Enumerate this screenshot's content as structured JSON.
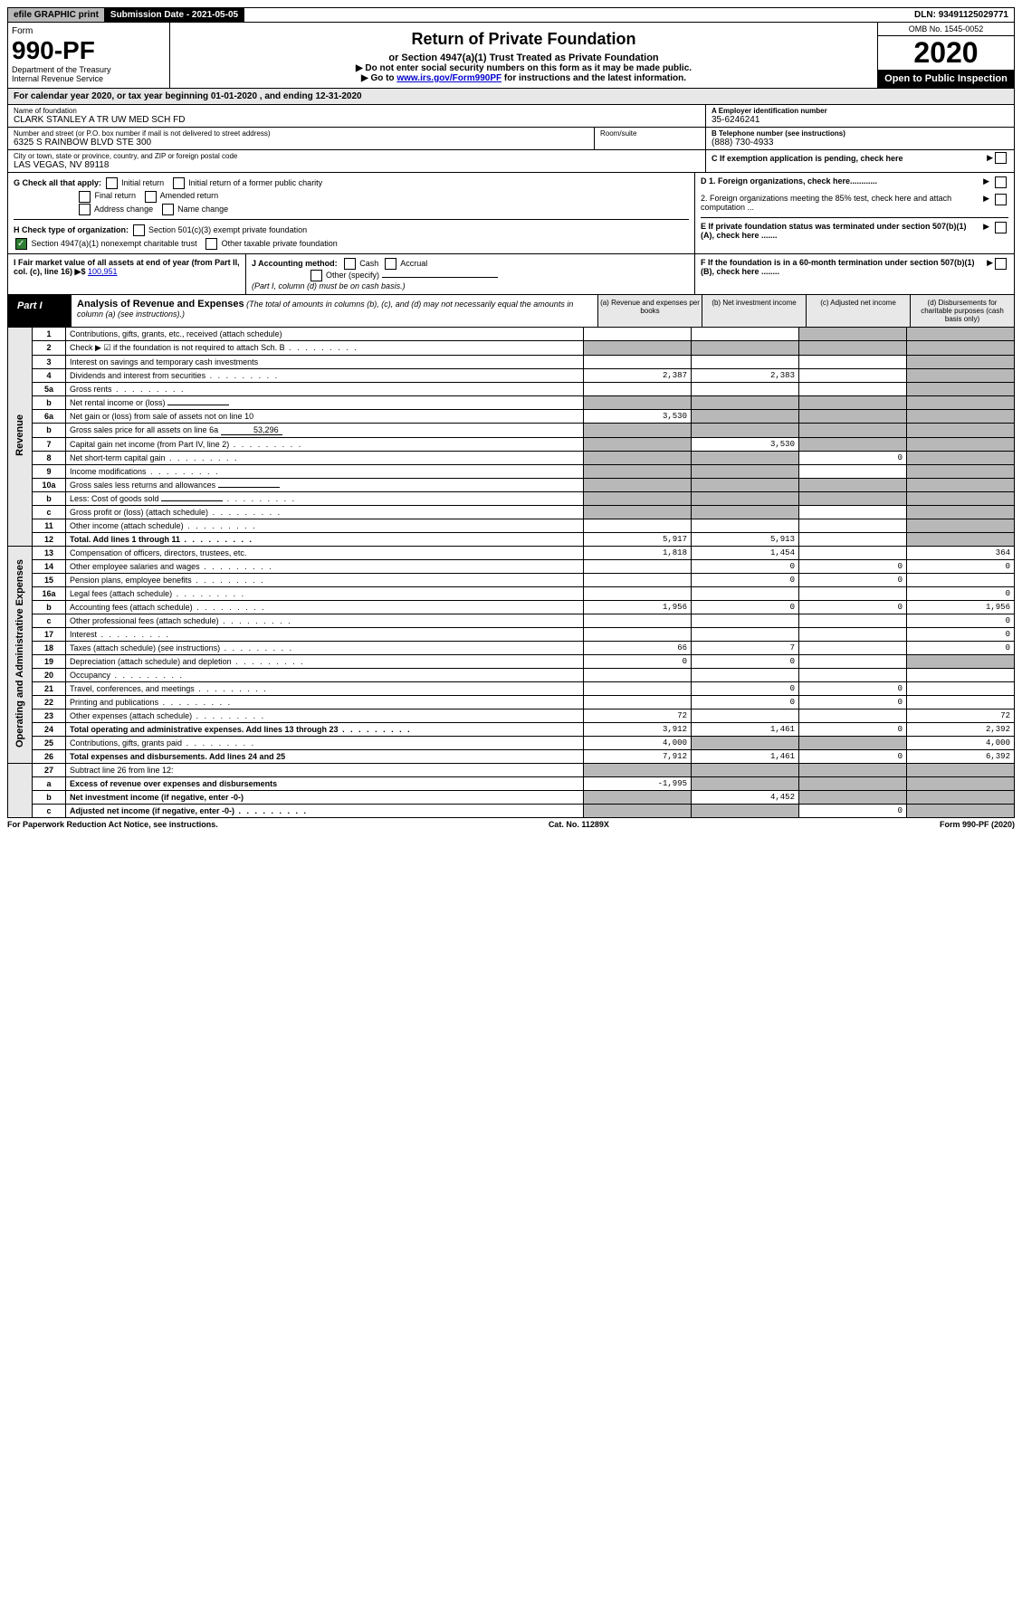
{
  "topbar": {
    "efile": "efile GRAPHIC print",
    "subdate_label": "Submission Date - ",
    "subdate": "2021-05-05",
    "dln_label": "DLN: ",
    "dln": "93491125029771"
  },
  "header": {
    "form_word": "Form",
    "form_no": "990-PF",
    "dept": "Department of the Treasury",
    "irs": "Internal Revenue Service",
    "title": "Return of Private Foundation",
    "subtitle": "or Section 4947(a)(1) Trust Treated as Private Foundation",
    "instr1": "▶ Do not enter social security numbers on this form as it may be made public.",
    "instr2_pre": "▶ Go to ",
    "instr2_link": "www.irs.gov/Form990PF",
    "instr2_post": " for instructions and the latest information.",
    "omb": "OMB No. 1545-0052",
    "year": "2020",
    "open": "Open to Public Inspection"
  },
  "calyear": "For calendar year 2020, or tax year beginning 01-01-2020             , and ending 12-31-2020",
  "info": {
    "name_lbl": "Name of foundation",
    "name": "CLARK STANLEY A TR UW MED SCH FD",
    "addr_lbl": "Number and street (or P.O. box number if mail is not delivered to street address)",
    "addr": "6325 S RAINBOW BLVD STE 300",
    "room_lbl": "Room/suite",
    "city_lbl": "City or town, state or province, country, and ZIP or foreign postal code",
    "city": "LAS VEGAS, NV  89118",
    "a_lbl": "A Employer identification number",
    "a_val": "35-6246241",
    "b_lbl": "B Telephone number (see instructions)",
    "b_val": "(888) 730-4933",
    "c_lbl": "C If exemption application is pending, check here"
  },
  "checks": {
    "g_lbl": "G Check all that apply:",
    "g_opts": [
      "Initial return",
      "Initial return of a former public charity",
      "Final return",
      "Amended return",
      "Address change",
      "Name change"
    ],
    "h_lbl": "H Check type of organization:",
    "h_opts": [
      "Section 501(c)(3) exempt private foundation",
      "Section 4947(a)(1) nonexempt charitable trust",
      "Other taxable private foundation"
    ],
    "d1": "D 1. Foreign organizations, check here............",
    "d2": "2. Foreign organizations meeting the 85% test, check here and attach computation ...",
    "e": "E  If private foundation status was terminated under section 507(b)(1)(A), check here .......",
    "f": "F  If the foundation is in a 60-month termination under section 507(b)(1)(B), check here ........"
  },
  "fmv": {
    "i_lbl": "I Fair market value of all assets at end of year (from Part II, col. (c), line 16) ▶$",
    "i_val": "100,951",
    "j_lbl": "J Accounting method:",
    "j_cash": "Cash",
    "j_accrual": "Accrual",
    "j_other": "Other (specify)",
    "j_note": "(Part I, column (d) must be on cash basis.)"
  },
  "part1": {
    "label": "Part I",
    "title": "Analysis of Revenue and Expenses",
    "note": "(The total of amounts in columns (b), (c), and (d) may not necessarily equal the amounts in column (a) (see instructions).)",
    "col_a": "(a)   Revenue and expenses per books",
    "col_b": "(b)  Net investment income",
    "col_c": "(c)  Adjusted net income",
    "col_d": "(d)  Disbursements for charitable purposes (cash basis only)"
  },
  "side_revenue": "Revenue",
  "side_expenses": "Operating and Administrative Expenses",
  "rows_rev": [
    {
      "n": "1",
      "d": "Contributions, gifts, grants, etc., received (attach schedule)",
      "a": "",
      "b": "",
      "c": "shade",
      "dd": "shade"
    },
    {
      "n": "2",
      "d": "Check ▶ ☑ if the foundation is not required to attach Sch. B",
      "a": "shade",
      "b": "shade",
      "c": "shade",
      "dd": "shade",
      "dots": true
    },
    {
      "n": "3",
      "d": "Interest on savings and temporary cash investments",
      "a": "",
      "b": "",
      "c": "",
      "dd": "shade"
    },
    {
      "n": "4",
      "d": "Dividends and interest from securities",
      "a": "2,387",
      "b": "2,383",
      "c": "",
      "dd": "shade",
      "dots": true
    },
    {
      "n": "5a",
      "d": "Gross rents",
      "a": "",
      "b": "",
      "c": "",
      "dd": "shade",
      "dots": true
    },
    {
      "n": "b",
      "d": "Net rental income or (loss)",
      "a": "shade",
      "b": "shade",
      "c": "shade",
      "dd": "shade",
      "inline": ""
    },
    {
      "n": "6a",
      "d": "Net gain or (loss) from sale of assets not on line 10",
      "a": "3,530",
      "b": "shade",
      "c": "shade",
      "dd": "shade"
    },
    {
      "n": "b",
      "d": "Gross sales price for all assets on line 6a",
      "a": "shade",
      "b": "shade",
      "c": "shade",
      "dd": "shade",
      "inline": "53,296"
    },
    {
      "n": "7",
      "d": "Capital gain net income (from Part IV, line 2)",
      "a": "shade",
      "b": "3,530",
      "c": "shade",
      "dd": "shade",
      "dots": true
    },
    {
      "n": "8",
      "d": "Net short-term capital gain",
      "a": "shade",
      "b": "shade",
      "c": "0",
      "dd": "shade",
      "dots": true
    },
    {
      "n": "9",
      "d": "Income modifications",
      "a": "shade",
      "b": "shade",
      "c": "",
      "dd": "shade",
      "dots": true
    },
    {
      "n": "10a",
      "d": "Gross sales less returns and allowances",
      "a": "shade",
      "b": "shade",
      "c": "shade",
      "dd": "shade",
      "inline": ""
    },
    {
      "n": "b",
      "d": "Less: Cost of goods sold",
      "a": "shade",
      "b": "shade",
      "c": "shade",
      "dd": "shade",
      "inline": "",
      "dots": true
    },
    {
      "n": "c",
      "d": "Gross profit or (loss) (attach schedule)",
      "a": "shade",
      "b": "shade",
      "c": "",
      "dd": "shade",
      "dots": true
    },
    {
      "n": "11",
      "d": "Other income (attach schedule)",
      "a": "",
      "b": "",
      "c": "",
      "dd": "shade",
      "dots": true
    },
    {
      "n": "12",
      "d": "Total. Add lines 1 through 11",
      "a": "5,917",
      "b": "5,913",
      "c": "",
      "dd": "shade",
      "bold": true,
      "dots": true
    }
  ],
  "rows_exp": [
    {
      "n": "13",
      "d": "Compensation of officers, directors, trustees, etc.",
      "a": "1,818",
      "b": "1,454",
      "c": "",
      "dd": "364"
    },
    {
      "n": "14",
      "d": "Other employee salaries and wages",
      "a": "",
      "b": "0",
      "c": "0",
      "dd": "0",
      "dots": true
    },
    {
      "n": "15",
      "d": "Pension plans, employee benefits",
      "a": "",
      "b": "0",
      "c": "0",
      "dd": "",
      "dots": true
    },
    {
      "n": "16a",
      "d": "Legal fees (attach schedule)",
      "a": "",
      "b": "",
      "c": "",
      "dd": "0",
      "dots": true
    },
    {
      "n": "b",
      "d": "Accounting fees (attach schedule)",
      "a": "1,956",
      "b": "0",
      "c": "0",
      "dd": "1,956",
      "dots": true
    },
    {
      "n": "c",
      "d": "Other professional fees (attach schedule)",
      "a": "",
      "b": "",
      "c": "",
      "dd": "0",
      "dots": true
    },
    {
      "n": "17",
      "d": "Interest",
      "a": "",
      "b": "",
      "c": "",
      "dd": "0",
      "dots": true
    },
    {
      "n": "18",
      "d": "Taxes (attach schedule) (see instructions)",
      "a": "66",
      "b": "7",
      "c": "",
      "dd": "0",
      "dots": true
    },
    {
      "n": "19",
      "d": "Depreciation (attach schedule) and depletion",
      "a": "0",
      "b": "0",
      "c": "",
      "dd": "shade",
      "dots": true
    },
    {
      "n": "20",
      "d": "Occupancy",
      "a": "",
      "b": "",
      "c": "",
      "dd": "",
      "dots": true
    },
    {
      "n": "21",
      "d": "Travel, conferences, and meetings",
      "a": "",
      "b": "0",
      "c": "0",
      "dd": "",
      "dots": true
    },
    {
      "n": "22",
      "d": "Printing and publications",
      "a": "",
      "b": "0",
      "c": "0",
      "dd": "",
      "dots": true
    },
    {
      "n": "23",
      "d": "Other expenses (attach schedule)",
      "a": "72",
      "b": "",
      "c": "",
      "dd": "72",
      "dots": true
    },
    {
      "n": "24",
      "d": "Total operating and administrative expenses. Add lines 13 through 23",
      "a": "3,912",
      "b": "1,461",
      "c": "0",
      "dd": "2,392",
      "bold": true,
      "dots": true
    },
    {
      "n": "25",
      "d": "Contributions, gifts, grants paid",
      "a": "4,000",
      "b": "shade",
      "c": "shade",
      "dd": "4,000",
      "dots": true
    },
    {
      "n": "26",
      "d": "Total expenses and disbursements. Add lines 24 and 25",
      "a": "7,912",
      "b": "1,461",
      "c": "0",
      "dd": "6,392",
      "bold": true
    }
  ],
  "rows_net": [
    {
      "n": "27",
      "d": "Subtract line 26 from line 12:",
      "a": "shade",
      "b": "shade",
      "c": "shade",
      "dd": "shade"
    },
    {
      "n": "a",
      "d": "Excess of revenue over expenses and disbursements",
      "a": "-1,995",
      "b": "shade",
      "c": "shade",
      "dd": "shade",
      "bold": true
    },
    {
      "n": "b",
      "d": "Net investment income (if negative, enter -0-)",
      "a": "shade",
      "b": "4,452",
      "c": "shade",
      "dd": "shade",
      "bold": true
    },
    {
      "n": "c",
      "d": "Adjusted net income (if negative, enter -0-)",
      "a": "shade",
      "b": "shade",
      "c": "0",
      "dd": "shade",
      "bold": true,
      "dots": true
    }
  ],
  "footer": {
    "left": "For Paperwork Reduction Act Notice, see instructions.",
    "mid": "Cat. No. 11289X",
    "right": "Form 990-PF (2020)"
  }
}
